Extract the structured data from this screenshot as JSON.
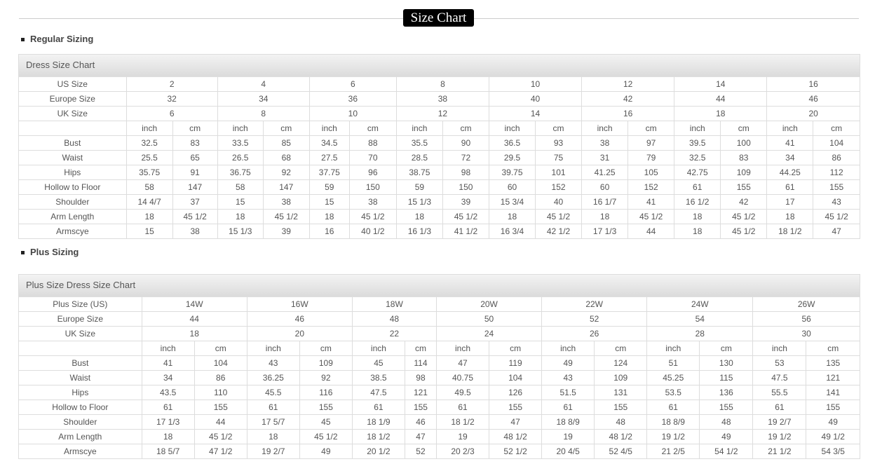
{
  "page_title": "Size Chart",
  "regular": {
    "section_label": "Regular Sizing",
    "table_title": "Dress Size Chart",
    "size_rows": [
      {
        "label": "US Size",
        "values": [
          "2",
          "4",
          "6",
          "8",
          "10",
          "12",
          "14",
          "16"
        ]
      },
      {
        "label": "Europe Size",
        "values": [
          "32",
          "34",
          "36",
          "38",
          "40",
          "42",
          "44",
          "46"
        ]
      },
      {
        "label": "UK Size",
        "values": [
          "6",
          "8",
          "10",
          "12",
          "14",
          "16",
          "18",
          "20"
        ]
      }
    ],
    "unit_labels": [
      "inch",
      "cm"
    ],
    "measure_rows": [
      {
        "label": "Bust",
        "values": [
          "32.5",
          "83",
          "33.5",
          "85",
          "34.5",
          "88",
          "35.5",
          "90",
          "36.5",
          "93",
          "38",
          "97",
          "39.5",
          "100",
          "41",
          "104"
        ]
      },
      {
        "label": "Waist",
        "values": [
          "25.5",
          "65",
          "26.5",
          "68",
          "27.5",
          "70",
          "28.5",
          "72",
          "29.5",
          "75",
          "31",
          "79",
          "32.5",
          "83",
          "34",
          "86"
        ]
      },
      {
        "label": "Hips",
        "values": [
          "35.75",
          "91",
          "36.75",
          "92",
          "37.75",
          "96",
          "38.75",
          "98",
          "39.75",
          "101",
          "41.25",
          "105",
          "42.75",
          "109",
          "44.25",
          "112"
        ]
      },
      {
        "label": "Hollow to Floor",
        "values": [
          "58",
          "147",
          "58",
          "147",
          "59",
          "150",
          "59",
          "150",
          "60",
          "152",
          "60",
          "152",
          "61",
          "155",
          "61",
          "155"
        ]
      },
      {
        "label": "Shoulder",
        "values": [
          "14 4/7",
          "37",
          "15",
          "38",
          "15",
          "38",
          "15 1/3",
          "39",
          "15 3/4",
          "40",
          "16 1/7",
          "41",
          "16 1/2",
          "42",
          "17",
          "43"
        ]
      },
      {
        "label": "Arm Length",
        "values": [
          "18",
          "45 1/2",
          "18",
          "45 1/2",
          "18",
          "45 1/2",
          "18",
          "45 1/2",
          "18",
          "45 1/2",
          "18",
          "45 1/2",
          "18",
          "45 1/2",
          "18",
          "45 1/2"
        ]
      },
      {
        "label": "Armscye",
        "values": [
          "15",
          "38",
          "15 1/3",
          "39",
          "16",
          "40 1/2",
          "16 1/3",
          "41 1/2",
          "16 3/4",
          "42 1/2",
          "17 1/3",
          "44",
          "18",
          "45 1/2",
          "18 1/2",
          "47"
        ]
      }
    ]
  },
  "plus": {
    "section_label": "Plus Sizing",
    "table_title": "Plus Size Dress Size Chart",
    "size_rows": [
      {
        "label": "Plus Size (US)",
        "values": [
          "14W",
          "16W",
          "18W",
          "20W",
          "22W",
          "24W",
          "26W"
        ]
      },
      {
        "label": "Europe Size",
        "values": [
          "44",
          "46",
          "48",
          "50",
          "52",
          "54",
          "56"
        ]
      },
      {
        "label": "UK Size",
        "values": [
          "18",
          "20",
          "22",
          "24",
          "26",
          "28",
          "30"
        ]
      }
    ],
    "unit_labels": [
      "inch",
      "cm"
    ],
    "measure_rows": [
      {
        "label": "Bust",
        "values": [
          "41",
          "104",
          "43",
          "109",
          "45",
          "114",
          "47",
          "119",
          "49",
          "124",
          "51",
          "130",
          "53",
          "135"
        ]
      },
      {
        "label": "Waist",
        "values": [
          "34",
          "86",
          "36.25",
          "92",
          "38.5",
          "98",
          "40.75",
          "104",
          "43",
          "109",
          "45.25",
          "115",
          "47.5",
          "121"
        ]
      },
      {
        "label": "Hips",
        "values": [
          "43.5",
          "110",
          "45.5",
          "116",
          "47.5",
          "121",
          "49.5",
          "126",
          "51.5",
          "131",
          "53.5",
          "136",
          "55.5",
          "141"
        ]
      },
      {
        "label": "Hollow to Floor",
        "values": [
          "61",
          "155",
          "61",
          "155",
          "61",
          "155",
          "61",
          "155",
          "61",
          "155",
          "61",
          "155",
          "61",
          "155"
        ]
      },
      {
        "label": "Shoulder",
        "values": [
          "17 1/3",
          "44",
          "17 5/7",
          "45",
          "18 1/9",
          "46",
          "18 1/2",
          "47",
          "18 8/9",
          "48",
          "18 8/9",
          "48",
          "19 2/7",
          "49"
        ]
      },
      {
        "label": "Arm Length",
        "values": [
          "18",
          "45 1/2",
          "18",
          "45 1/2",
          "18 1/2",
          "47",
          "19",
          "48 1/2",
          "19",
          "48 1/2",
          "19 1/2",
          "49",
          "19 1/2",
          "49 1/2"
        ]
      },
      {
        "label": "Armscye",
        "values": [
          "18 5/7",
          "47 1/2",
          "19 2/7",
          "49",
          "20 1/2",
          "52",
          "20 2/3",
          "52 1/2",
          "20 4/5",
          "52 4/5",
          "21 2/5",
          "54 1/2",
          "21 1/2",
          "54 3/5"
        ]
      }
    ]
  }
}
